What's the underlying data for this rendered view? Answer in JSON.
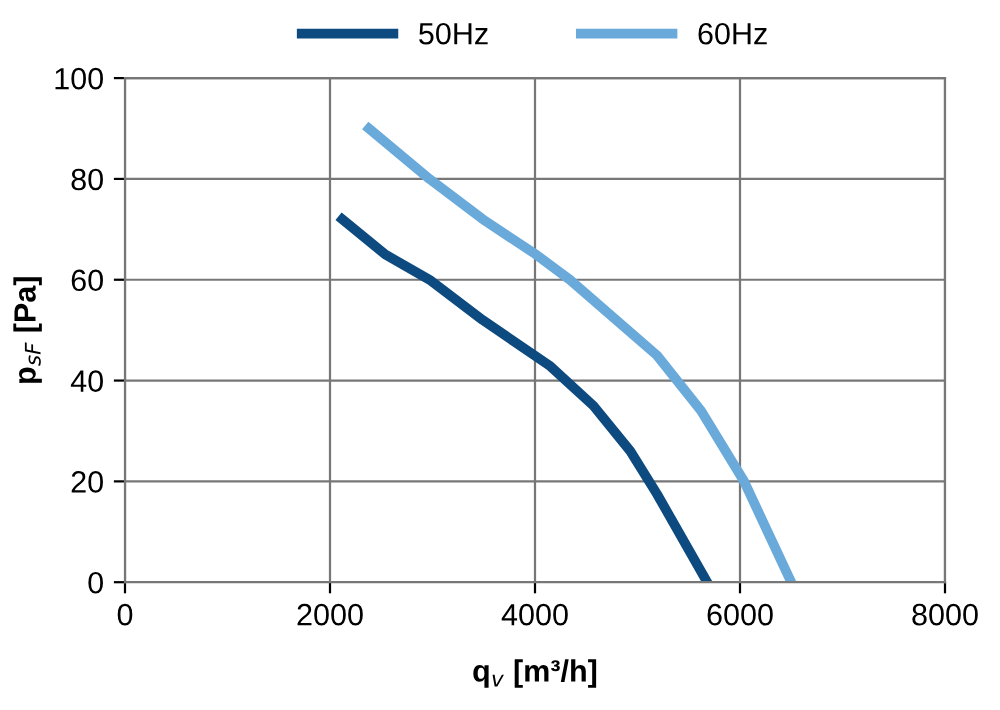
{
  "chart_data": {
    "type": "line",
    "xlabel": "q$_{v}$ [m³/h]",
    "ylabel": "p$_{sF}$ [Pa]",
    "xlim": [
      0,
      8000
    ],
    "xticks": [
      0,
      2000,
      4000,
      6000,
      8000
    ],
    "ylim": [
      0,
      100
    ],
    "yticks": [
      0,
      20,
      40,
      60,
      80,
      100
    ],
    "grid": true,
    "legend": "top",
    "marker": "none",
    "line_style": "solid",
    "series": [
      {
        "name": "50Hz",
        "color": "#0d4a80",
        "x": [
          2120,
          2540,
          2970,
          3490,
          4140,
          4570,
          4930,
          5190,
          5680
        ],
        "values": [
          72,
          65,
          60,
          52,
          43,
          35,
          26,
          17.5,
          0
        ]
      },
      {
        "name": "60Hz",
        "color": "#6aaadb",
        "x": [
          2380,
          2970,
          3490,
          4010,
          4340,
          5190,
          5620,
          6040,
          6500
        ],
        "values": [
          90,
          80,
          72,
          65,
          60,
          45,
          34,
          20,
          0
        ]
      }
    ]
  }
}
